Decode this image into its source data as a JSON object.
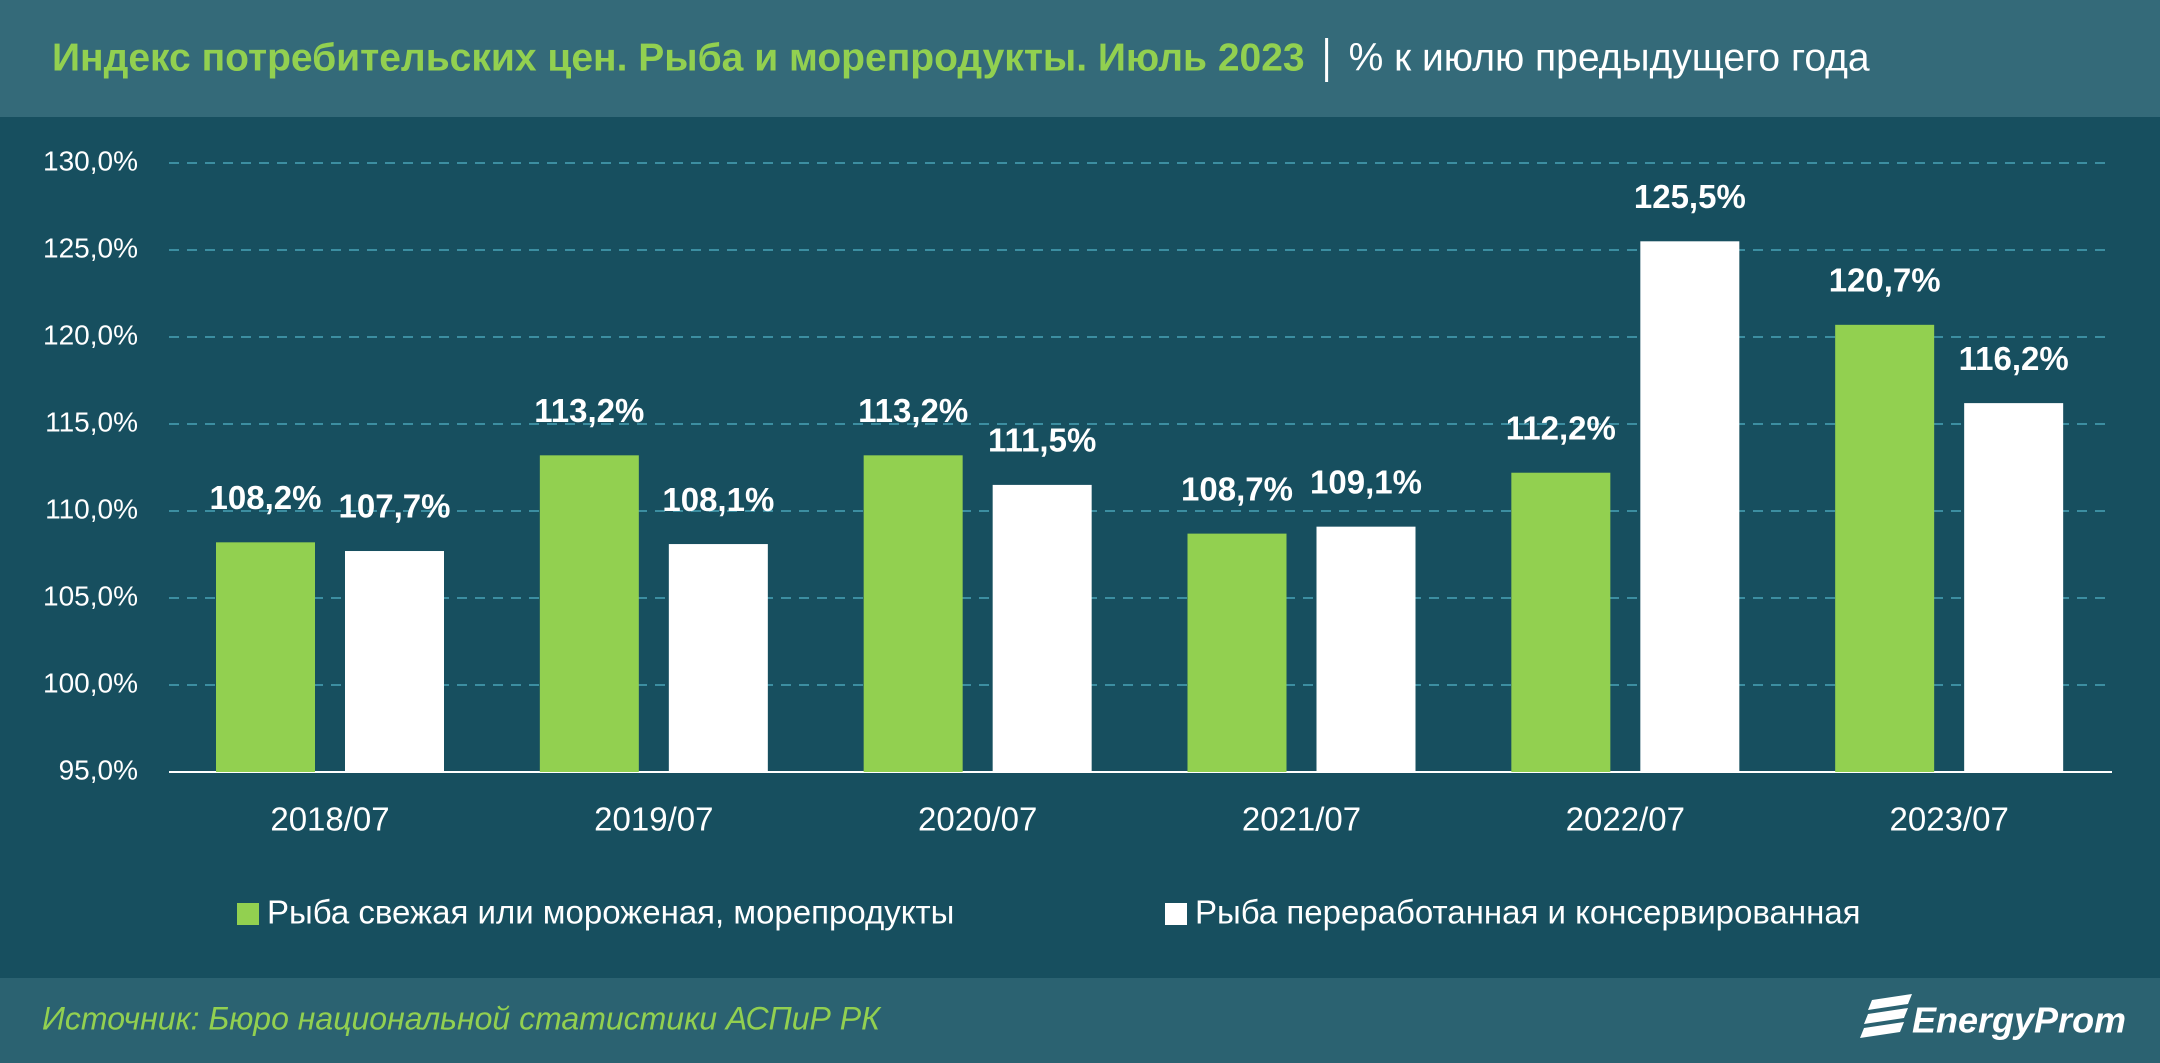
{
  "chart_data": {
    "type": "bar",
    "title": "Индекс потребительских цен. Рыба и морепродукты. Июль 2023",
    "subtitle": "% к июлю предыдущего года",
    "categories": [
      "2018/07",
      "2019/07",
      "2020/07",
      "2021/07",
      "2022/07",
      "2023/07"
    ],
    "series": [
      {
        "name": "Рыба свежая или мороженая, морепродукты",
        "color": "#92d050",
        "values": [
          108.2,
          113.2,
          113.2,
          108.7,
          112.2,
          120.7
        ],
        "value_labels": [
          "108,2%",
          "113,2%",
          "113,2%",
          "108,7%",
          "112,2%",
          "120,7%"
        ]
      },
      {
        "name": "Рыба переработанная и консервированная",
        "color": "#ffffff",
        "values": [
          107.7,
          108.1,
          111.5,
          109.1,
          125.5,
          116.2
        ],
        "value_labels": [
          "107,7%",
          "108,1%",
          "111,5%",
          "109,1%",
          "125,5%",
          "116,2%"
        ]
      }
    ],
    "ylim": [
      95,
      130
    ],
    "yticks": [
      {
        "value": 95,
        "label": "95,0%"
      },
      {
        "value": 100,
        "label": "100,0%"
      },
      {
        "value": 105,
        "label": "105,0%"
      },
      {
        "value": 110,
        "label": "110,0%"
      },
      {
        "value": 115,
        "label": "115,0%"
      },
      {
        "value": 120,
        "label": "120,0%"
      },
      {
        "value": 125,
        "label": "125,0%"
      },
      {
        "value": 130,
        "label": "130,0%"
      }
    ],
    "grid": true,
    "source": "Источник: Бюро национальной статистики АСПиР РК",
    "logo": "EnergyProm"
  }
}
